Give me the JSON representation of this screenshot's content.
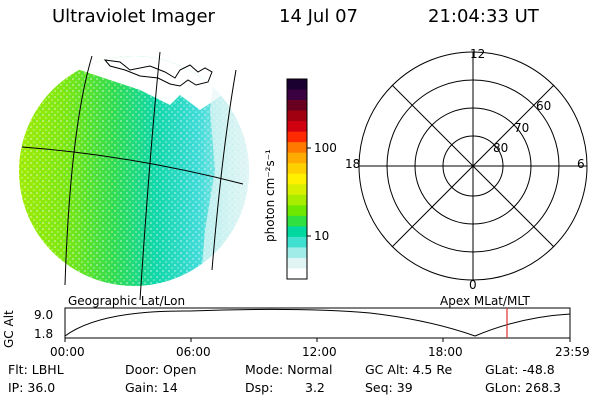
{
  "header": {
    "title": "Ultraviolet Imager",
    "date": "14 Jul 07",
    "time": "21:04:33 UT"
  },
  "colorbar": {
    "unit_label": "photon cm⁻²s⁻¹",
    "ticks": [
      "100",
      "10"
    ],
    "colors": [
      "#1a0030",
      "#3a0040",
      "#6a0020",
      "#a00010",
      "#d00010",
      "#ff2a00",
      "#ff7800",
      "#ffaa00",
      "#ffd000",
      "#fff000",
      "#d8f000",
      "#a8ec00",
      "#6ee800",
      "#30e040",
      "#00d8a0",
      "#40e0d0",
      "#a0ece8",
      "#e0f4f4",
      "#ffffff"
    ]
  },
  "polar": {
    "mlt_labels": {
      "top": "12",
      "left": "18",
      "right": "6",
      "bottom": "0"
    },
    "lat_labels": [
      "60",
      "70",
      "80"
    ]
  },
  "panel_labels": {
    "left": "Geographic Lat/Lon",
    "right": "Apex MLat/MLT"
  },
  "altitude_plot": {
    "axis_label": "GC Alt",
    "y_ticks": [
      "9.0",
      "1.8"
    ],
    "x_ticks": [
      "00:00",
      "06:00",
      "12:00",
      "18:00",
      "23:59"
    ],
    "marker_color": "#e03030"
  },
  "info": {
    "flt": "Flt: LBHL",
    "ip": "IP: 36.0",
    "door": "Door: Open",
    "gain": "Gain: 14",
    "mode": "Mode: Normal",
    "dsp": "Dsp:",
    "dsp_value": "3.2",
    "gc_alt": "GC Alt: 4.5 Re",
    "seq": "Seq: 39",
    "glat": "GLat: -48.8",
    "glon": "GLon: 268.3"
  }
}
